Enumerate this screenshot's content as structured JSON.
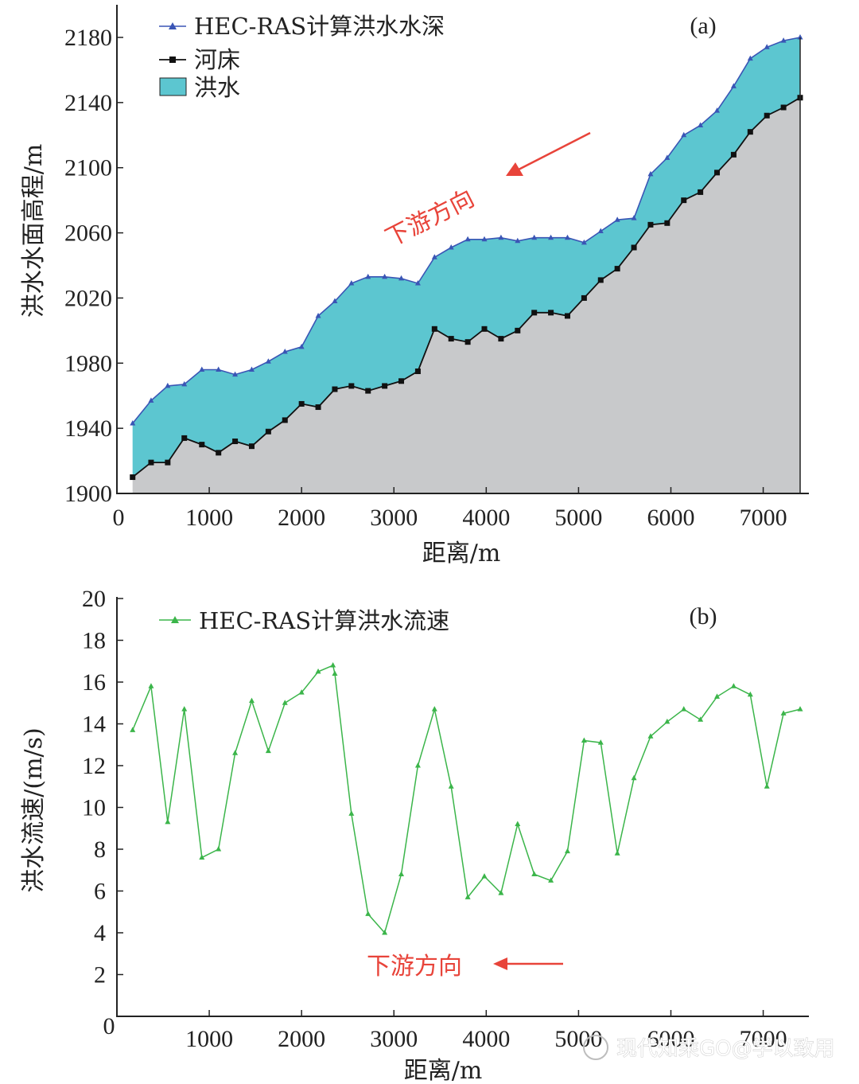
{
  "chart_data": [
    {
      "panel_label": "(a)",
      "type": "area",
      "ylabel": "洪水水面高程/m",
      "xlabel": "距离/m",
      "xlim": [
        0,
        7400
      ],
      "ylim": [
        1900,
        2195
      ],
      "xticks": [
        "0",
        "1000",
        "2000",
        "3000",
        "4000",
        "5000",
        "6000",
        "7000"
      ],
      "yticks": [
        "1900",
        "1940",
        "1980",
        "2020",
        "2060",
        "2100",
        "2140",
        "2180"
      ],
      "legend": [
        "HEC-RAS计算洪水水深",
        "河床",
        "洪水"
      ],
      "colors": {
        "water_line": "#3a55b5",
        "bed_line": "#111111",
        "flood_fill": "#5cc6d0",
        "bed_fill": "#c8c9cb"
      },
      "x": [
        170,
        370,
        550,
        730,
        920,
        1100,
        1280,
        1460,
        1640,
        1820,
        2000,
        2180,
        2360,
        2540,
        2720,
        2900,
        3080,
        3260,
        3440,
        3620,
        3800,
        3980,
        4160,
        4340,
        4520,
        4700,
        4880,
        5060,
        5240,
        5420,
        5600,
        5780,
        5960,
        6140,
        6320,
        6500,
        6680,
        6860,
        7040,
        7220,
        7400
      ],
      "series": [
        {
          "name": "HEC-RAS计算洪水水深",
          "values": [
            1943,
            1957,
            1966,
            1967,
            1976,
            1976,
            1973,
            1976,
            1981,
            1987,
            1990,
            2009,
            2018,
            2029,
            2033,
            2033,
            2032,
            2029,
            2045,
            2051,
            2056,
            2056,
            2057,
            2055,
            2057,
            2057,
            2057,
            2054,
            2061,
            2068,
            2069,
            2096,
            2106,
            2120,
            2126,
            2135,
            2150,
            2167,
            2174,
            2178,
            2180
          ]
        },
        {
          "name": "河床",
          "values": [
            1910,
            1919,
            1919,
            1934,
            1930,
            1925,
            1932,
            1929,
            1938,
            1945,
            1955,
            1953,
            1964,
            1966,
            1963,
            1966,
            1969,
            1975,
            2001,
            1995,
            1993,
            2001,
            1995,
            2000,
            2011,
            2011,
            2009,
            2020,
            2031,
            2038,
            2051,
            2065,
            2066,
            2080,
            2085,
            2097,
            2108,
            2122,
            2132,
            2137,
            2143
          ]
        }
      ],
      "annotation": "下游方向"
    },
    {
      "panel_label": "(b)",
      "type": "line",
      "ylabel": "洪水流速/(m/s)",
      "xlabel": "距离/m",
      "xlim": [
        0,
        7400
      ],
      "ylim": [
        0,
        20
      ],
      "xticks": [
        "0",
        "1000",
        "2000",
        "3000",
        "4000",
        "5000",
        "6000",
        "7000"
      ],
      "yticks": [
        "2",
        "4",
        "6",
        "8",
        "10",
        "12",
        "14",
        "16",
        "18",
        "20"
      ],
      "legend": [
        "HEC-RAS计算洪水流速"
      ],
      "colors": {
        "line": "#3bb54a"
      },
      "x": [
        170,
        370,
        550,
        730,
        920,
        1100,
        1280,
        1460,
        1640,
        1820,
        2000,
        2180,
        2340,
        2360,
        2540,
        2720,
        2900,
        3080,
        3260,
        3440,
        3620,
        3800,
        3980,
        4160,
        4340,
        4520,
        4700,
        4880,
        5060,
        5240,
        5420,
        5600,
        5780,
        5960,
        6140,
        6320,
        6500,
        6680,
        6860,
        7040,
        7220,
        7400
      ],
      "series": [
        {
          "name": "HEC-RAS计算洪水流速",
          "values": [
            13.7,
            15.8,
            9.3,
            14.7,
            7.6,
            8.0,
            12.6,
            15.1,
            12.7,
            15.0,
            15.5,
            16.5,
            16.8,
            16.4,
            9.7,
            4.9,
            4.0,
            6.8,
            12.0,
            14.7,
            11.0,
            5.7,
            6.7,
            5.9,
            9.2,
            6.8,
            6.5,
            7.9,
            13.2,
            13.1,
            7.8,
            11.4,
            13.4,
            14.1,
            14.7,
            14.2,
            15.3,
            15.8,
            15.4,
            11.0,
            14.5,
            14.7
          ]
        }
      ],
      "annotation": "下游方向"
    }
  ],
  "watermark": "现代知乘GO@学以致用"
}
